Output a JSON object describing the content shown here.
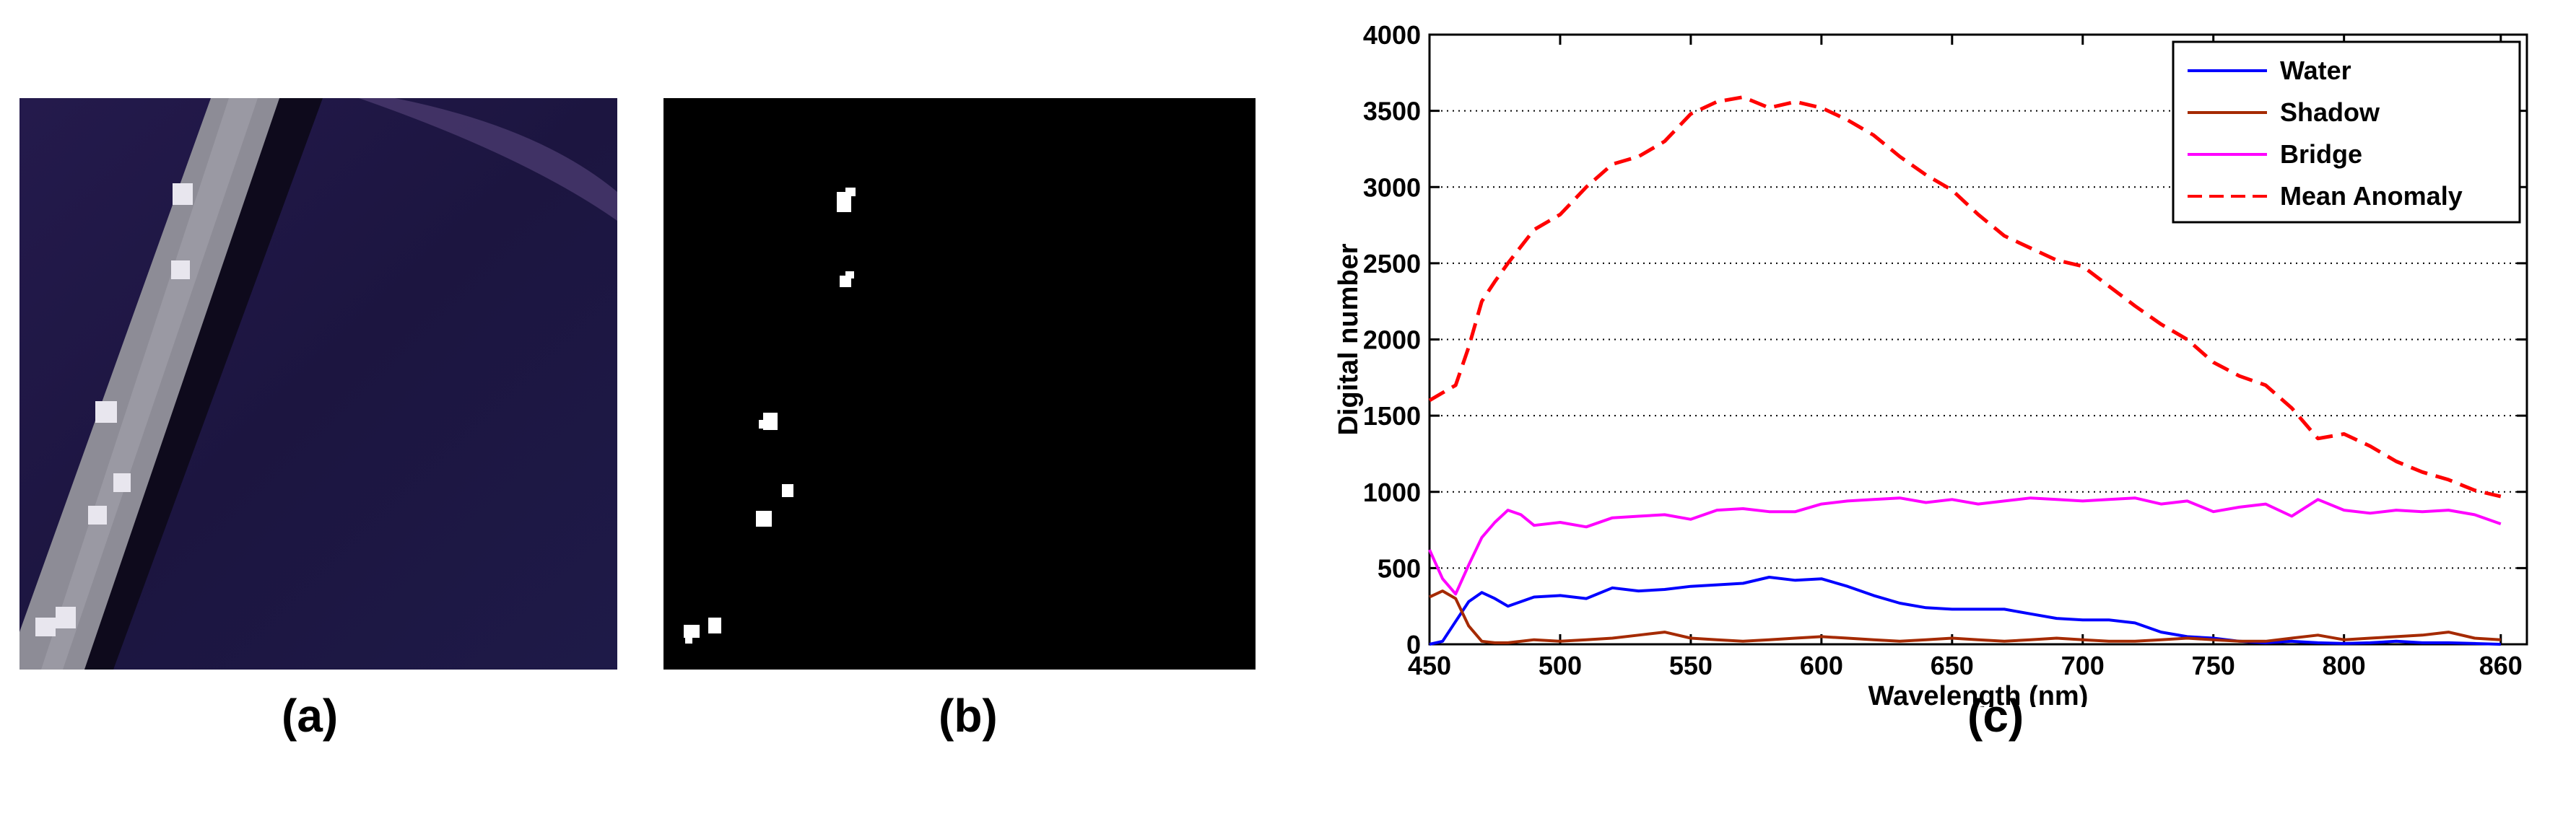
{
  "panels": {
    "a": {
      "label": "(a)"
    },
    "b": {
      "label": "(b)"
    },
    "c": {
      "label": "(c)"
    }
  },
  "images": {
    "a": {
      "description_icon": "aerial-bridge-image",
      "background": "#1a1438",
      "bridge_color": "#8d8c96"
    },
    "b": {
      "description_icon": "binary-anomaly-map",
      "background": "#000000",
      "foreground": "#ffffff"
    }
  },
  "chart_data": {
    "type": "line",
    "title": "",
    "xlabel": "Wavelength (nm)",
    "ylabel": "Digital number",
    "xlim": [
      450,
      870
    ],
    "ylim": [
      0,
      4000
    ],
    "xticks": [
      450,
      500,
      550,
      600,
      650,
      700,
      750,
      800,
      860
    ],
    "yticks": [
      0,
      500,
      1000,
      1500,
      2000,
      2500,
      3000,
      3500,
      4000
    ],
    "grid": "horizontal-dotted",
    "legend_position": "top-right",
    "series": [
      {
        "name": "Water",
        "color": "#0000ff",
        "style": "solid",
        "x": [
          450,
          455,
          460,
          465,
          470,
          475,
          480,
          490,
          500,
          510,
          520,
          530,
          540,
          550,
          560,
          570,
          580,
          590,
          600,
          610,
          620,
          630,
          640,
          650,
          660,
          670,
          680,
          690,
          700,
          710,
          720,
          730,
          740,
          750,
          760,
          770,
          780,
          790,
          800,
          810,
          820,
          830,
          840,
          850,
          860
        ],
        "y": [
          0,
          20,
          150,
          280,
          340,
          300,
          250,
          310,
          320,
          300,
          370,
          350,
          360,
          380,
          390,
          400,
          440,
          420,
          430,
          380,
          320,
          270,
          240,
          230,
          230,
          230,
          200,
          170,
          160,
          160,
          140,
          80,
          50,
          40,
          20,
          10,
          20,
          10,
          5,
          10,
          20,
          10,
          10,
          5,
          0
        ]
      },
      {
        "name": "Shadow",
        "color": "#a52a00",
        "style": "solid",
        "x": [
          450,
          455,
          460,
          465,
          470,
          475,
          480,
          490,
          500,
          510,
          520,
          530,
          540,
          550,
          560,
          570,
          580,
          590,
          600,
          610,
          620,
          630,
          640,
          650,
          660,
          670,
          680,
          690,
          700,
          710,
          720,
          730,
          740,
          750,
          760,
          770,
          780,
          790,
          800,
          810,
          820,
          830,
          840,
          850,
          860
        ],
        "y": [
          310,
          350,
          300,
          120,
          20,
          10,
          10,
          30,
          20,
          30,
          40,
          60,
          80,
          40,
          30,
          20,
          30,
          40,
          50,
          40,
          30,
          20,
          30,
          40,
          30,
          20,
          30,
          40,
          30,
          20,
          20,
          30,
          40,
          30,
          20,
          20,
          40,
          60,
          30,
          40,
          50,
          60,
          80,
          40,
          30
        ]
      },
      {
        "name": "Bridge",
        "color": "#ff00ff",
        "style": "solid",
        "x": [
          450,
          455,
          460,
          465,
          470,
          475,
          480,
          485,
          490,
          500,
          510,
          520,
          530,
          540,
          550,
          560,
          570,
          580,
          590,
          600,
          610,
          620,
          630,
          640,
          650,
          660,
          670,
          680,
          690,
          700,
          710,
          720,
          730,
          740,
          750,
          760,
          770,
          780,
          790,
          800,
          810,
          820,
          830,
          840,
          850,
          860
        ],
        "y": [
          620,
          430,
          330,
          520,
          700,
          800,
          880,
          850,
          780,
          800,
          770,
          830,
          840,
          850,
          820,
          880,
          890,
          870,
          870,
          920,
          940,
          950,
          960,
          930,
          950,
          920,
          940,
          960,
          950,
          940,
          950,
          960,
          920,
          940,
          870,
          900,
          920,
          840,
          950,
          880,
          860,
          880,
          870,
          880,
          850,
          790
        ]
      },
      {
        "name": "Mean Anomaly",
        "color": "#ff0000",
        "style": "dashed",
        "x": [
          450,
          455,
          460,
          465,
          470,
          475,
          480,
          490,
          500,
          510,
          520,
          530,
          540,
          550,
          560,
          570,
          580,
          590,
          600,
          610,
          620,
          630,
          640,
          650,
          660,
          670,
          680,
          690,
          700,
          710,
          720,
          730,
          740,
          750,
          760,
          770,
          780,
          790,
          800,
          810,
          820,
          830,
          840,
          850,
          860
        ],
        "y": [
          1600,
          1650,
          1700,
          1950,
          2250,
          2380,
          2500,
          2720,
          2820,
          3000,
          3150,
          3200,
          3300,
          3480,
          3560,
          3590,
          3520,
          3560,
          3520,
          3440,
          3340,
          3200,
          3080,
          2980,
          2820,
          2680,
          2600,
          2520,
          2480,
          2350,
          2220,
          2100,
          2000,
          1850,
          1760,
          1700,
          1550,
          1350,
          1380,
          1300,
          1200,
          1130,
          1080,
          1010,
          970
        ]
      }
    ]
  }
}
